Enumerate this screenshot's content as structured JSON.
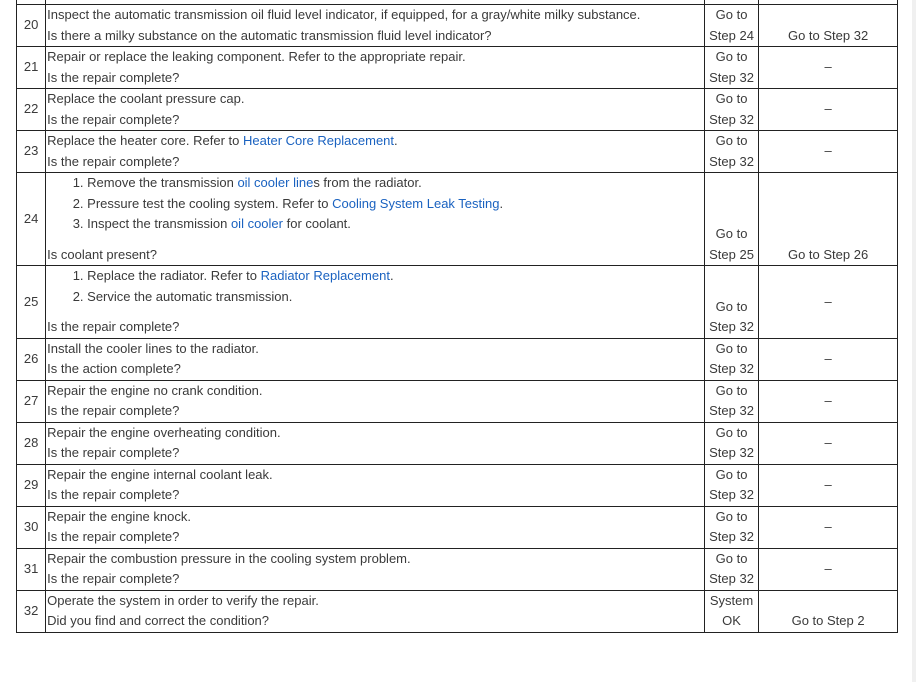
{
  "colors": {
    "link": "#1a62c0",
    "text": "#3a3a3a",
    "border": "#222222"
  },
  "rows": [
    {
      "step": "20",
      "lines": [
        [
          {
            "t": "Inspect the automatic transmission oil fluid level indicator, if equipped, for a gray/white milky substance."
          }
        ]
      ],
      "question": "Is there a milky substance on the automatic transmission fluid level indicator?",
      "yes": [
        "Go to",
        "Step 24"
      ],
      "no": "Go to Step 32"
    },
    {
      "step": "21",
      "lines": [
        [
          {
            "t": "Repair or replace the leaking component. Refer to the appropriate repair."
          }
        ]
      ],
      "question": "Is the repair complete?",
      "yes": [
        "Go to",
        "Step 32"
      ],
      "no": "–"
    },
    {
      "step": "22",
      "lines": [
        [
          {
            "t": "Replace the coolant pressure cap."
          }
        ]
      ],
      "question": "Is the repair complete?",
      "yes": [
        "Go to",
        "Step 32"
      ],
      "no": "–"
    },
    {
      "step": "23",
      "lines": [
        [
          {
            "t": "Replace the heater core. Refer to "
          },
          {
            "t": "Heater Core Replacement",
            "link": true
          },
          {
            "t": "."
          }
        ]
      ],
      "question": "Is the repair complete?",
      "yes": [
        "Go to",
        "Step 32"
      ],
      "no": "–"
    },
    {
      "step": "24",
      "list": [
        [
          {
            "t": "Remove the transmission "
          },
          {
            "t": "oil cooler line",
            "link": true
          },
          {
            "t": "s from the radiator."
          }
        ],
        [
          {
            "t": "Pressure test the cooling system. Refer to "
          },
          {
            "t": "Cooling System Leak Testing",
            "link": true
          },
          {
            "t": "."
          }
        ],
        [
          {
            "t": "Inspect the transmission "
          },
          {
            "t": "oil cooler",
            "link": true
          },
          {
            "t": " for coolant."
          }
        ]
      ],
      "question": "Is coolant present?",
      "yes": [
        "Go to",
        "Step 25"
      ],
      "no": "Go to Step 26"
    },
    {
      "step": "25",
      "list": [
        [
          {
            "t": "Replace the radiator. Refer to "
          },
          {
            "t": "Radiator Replacement",
            "link": true
          },
          {
            "t": "."
          }
        ],
        [
          {
            "t": "Service the automatic transmission."
          }
        ]
      ],
      "question": "Is the repair complete?",
      "yes": [
        "Go to",
        "Step 32"
      ],
      "no": "–"
    },
    {
      "step": "26",
      "lines": [
        [
          {
            "t": "Install the cooler lines to the radiator."
          }
        ]
      ],
      "question": "Is the action complete?",
      "yes": [
        "Go to",
        "Step 32"
      ],
      "no": "–"
    },
    {
      "step": "27",
      "lines": [
        [
          {
            "t": "Repair the engine no crank condition."
          }
        ]
      ],
      "question": "Is the repair complete?",
      "yes": [
        "Go to",
        "Step 32"
      ],
      "no": "–"
    },
    {
      "step": "28",
      "lines": [
        [
          {
            "t": "Repair the engine overheating condition."
          }
        ]
      ],
      "question": "Is the repair complete?",
      "yes": [
        "Go to",
        "Step 32"
      ],
      "no": "–"
    },
    {
      "step": "29",
      "lines": [
        [
          {
            "t": "Repair the engine internal coolant leak."
          }
        ]
      ],
      "question": "Is the repair complete?",
      "yes": [
        "Go to",
        "Step 32"
      ],
      "no": "–"
    },
    {
      "step": "30",
      "lines": [
        [
          {
            "t": "Repair the engine knock."
          }
        ]
      ],
      "question": "Is the repair complete?",
      "yes": [
        "Go to",
        "Step 32"
      ],
      "no": "–"
    },
    {
      "step": "31",
      "lines": [
        [
          {
            "t": "Repair the combustion pressure in the cooling system problem."
          }
        ]
      ],
      "question": "Is the repair complete?",
      "yes": [
        "Go to",
        "Step 32"
      ],
      "no": "–"
    },
    {
      "step": "32",
      "lines": [
        [
          {
            "t": "Operate the system in order to verify the repair."
          }
        ]
      ],
      "question": "Did you find and correct the condition?",
      "yes": [
        "System",
        "OK"
      ],
      "no": "Go to Step 2"
    }
  ]
}
